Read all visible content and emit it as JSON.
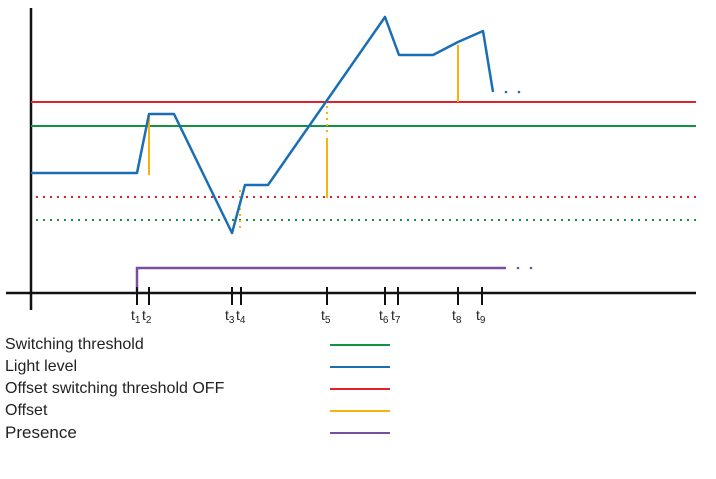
{
  "colors": {
    "switching_threshold": "#13933f",
    "light_level": "#1a6eb3",
    "offset_threshold_off": "#e0202a",
    "offset": "#f7b20e",
    "presence": "#7b4fa0",
    "axis": "#111111"
  },
  "time_labels": [
    {
      "base": "t",
      "sub": "1"
    },
    {
      "base": "t",
      "sub": "2"
    },
    {
      "base": "t",
      "sub": "3"
    },
    {
      "base": "t",
      "sub": "4"
    },
    {
      "base": "t",
      "sub": "5"
    },
    {
      "base": "t",
      "sub": "6"
    },
    {
      "base": "t",
      "sub": "7"
    },
    {
      "base": "t",
      "sub": "8"
    },
    {
      "base": "t",
      "sub": "9"
    }
  ],
  "legend": [
    {
      "label": "Switching threshold",
      "color": "#13933f"
    },
    {
      "label": "Light level",
      "color": "#1a6eb3"
    },
    {
      "label": "Offset switching threshold OFF",
      "color": "#e0202a"
    },
    {
      "label": "Offset",
      "color": "#f7b20e"
    },
    {
      "label": "Presence",
      "color": "#7b4fa0"
    }
  ]
}
